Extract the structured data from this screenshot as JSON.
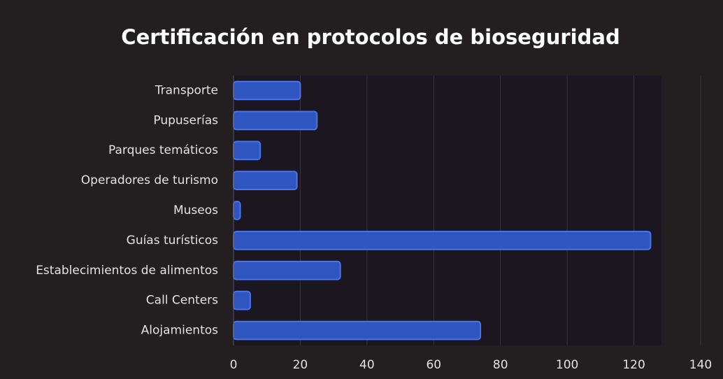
{
  "chart_data": {
    "type": "bar",
    "orientation": "horizontal",
    "title": "Certificación en protocolos de bioseguridad",
    "categories": [
      "Transporte",
      "Pupuserías",
      "Parques temáticos",
      "Operadores de turismo",
      "Museos",
      "Guías turísticos",
      "Establecimientos de alimentos",
      "Call Centers",
      "Alojamientos"
    ],
    "values": [
      20,
      25,
      8,
      19,
      2,
      125,
      32,
      5,
      74
    ],
    "color": "#2f55c0",
    "xlim": [
      0,
      140
    ],
    "xticks": [
      0,
      20,
      40,
      60,
      80,
      100,
      120,
      140
    ],
    "grid": true
  }
}
